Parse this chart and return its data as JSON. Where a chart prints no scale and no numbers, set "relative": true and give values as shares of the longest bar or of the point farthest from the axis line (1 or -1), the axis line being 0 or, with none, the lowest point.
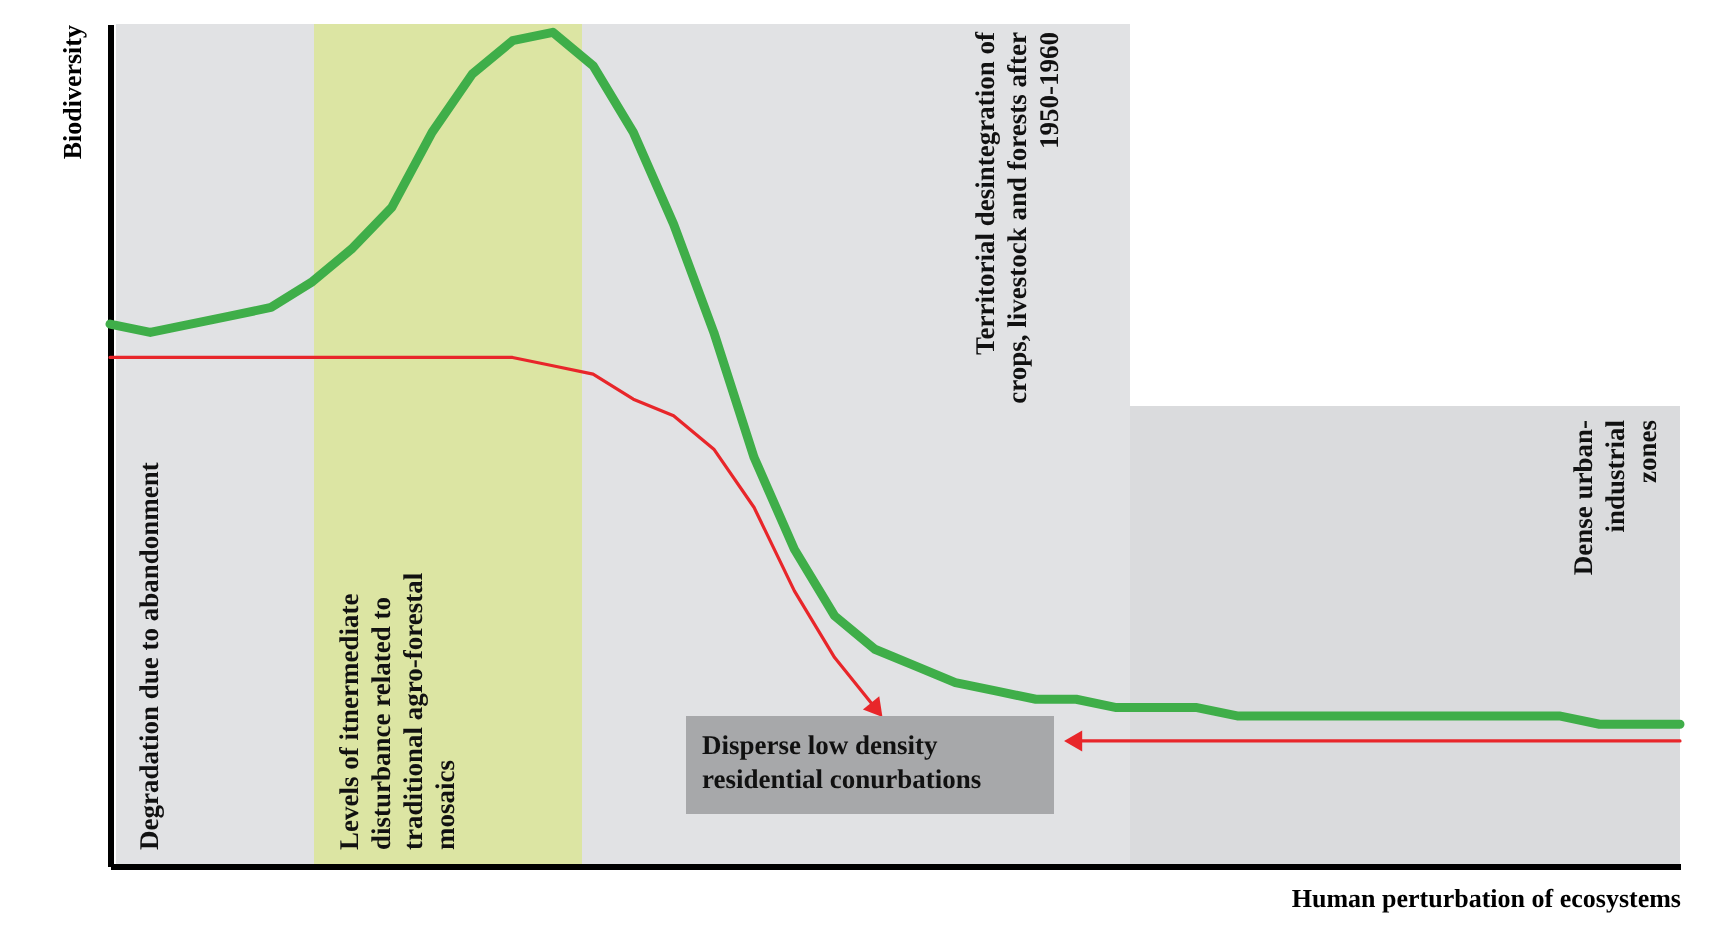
{
  "chart_data": {
    "type": "line",
    "relative": true,
    "xlabel": "Human perturbation of ecosystems",
    "ylabel": "Biodiversity",
    "categories": [
      null,
      null,
      null,
      null,
      null,
      null,
      null,
      null,
      null,
      null,
      null,
      null,
      null,
      null,
      null,
      null,
      null,
      null,
      null,
      null,
      null,
      null,
      null,
      null,
      null,
      null,
      null,
      null,
      null,
      null,
      null,
      null,
      null,
      null,
      null,
      null,
      null,
      null,
      null,
      null
    ],
    "series": [
      {
        "color": "#3fae49",
        "values": [
          0.65,
          0.64,
          0.65,
          0.66,
          0.67,
          0.7,
          0.74,
          0.79,
          0.88,
          0.95,
          0.99,
          1.0,
          0.96,
          0.88,
          0.77,
          0.64,
          0.49,
          0.38,
          0.3,
          0.26,
          0.24,
          0.22,
          0.21,
          0.2,
          0.2,
          0.19,
          0.19,
          0.19,
          0.18,
          0.18,
          0.18,
          0.18,
          0.18,
          0.18,
          0.18,
          0.18,
          0.18,
          0.17,
          0.17,
          0.17
        ]
      },
      {
        "color": "#e8262a",
        "values": [
          0.61,
          0.61,
          0.61,
          0.61,
          0.61,
          0.61,
          0.61,
          0.61,
          0.61,
          0.61,
          0.61,
          0.6,
          0.59,
          0.56,
          0.54,
          0.5,
          0.43,
          0.33,
          0.25,
          0.19,
          null,
          null,
          null,
          null,
          null,
          null,
          null,
          null,
          null,
          null,
          null,
          null,
          null,
          null,
          null,
          null,
          null,
          null,
          null,
          null
        ]
      },
      {
        "color": "#e8262a",
        "values": [
          null,
          null,
          null,
          null,
          null,
          null,
          null,
          null,
          null,
          null,
          null,
          null,
          null,
          null,
          null,
          null,
          null,
          null,
          null,
          null,
          null,
          null,
          null,
          null,
          0.15,
          0.15,
          0.15,
          0.15,
          0.15,
          0.15,
          0.15,
          0.15,
          0.15,
          0.15,
          0.15,
          0.15,
          0.15,
          0.15,
          0.15,
          0.15
        ]
      }
    ],
    "annotations": [
      "Degradation due to abandonment",
      "Levels of itnermediate disturbance related to traditional agro-forestal mosaics",
      "Territorial desintegration of crops, livestock and forests after 1950-1960",
      "Dense urban-industrial zones",
      "Disperse low density residential conurbations"
    ]
  }
}
